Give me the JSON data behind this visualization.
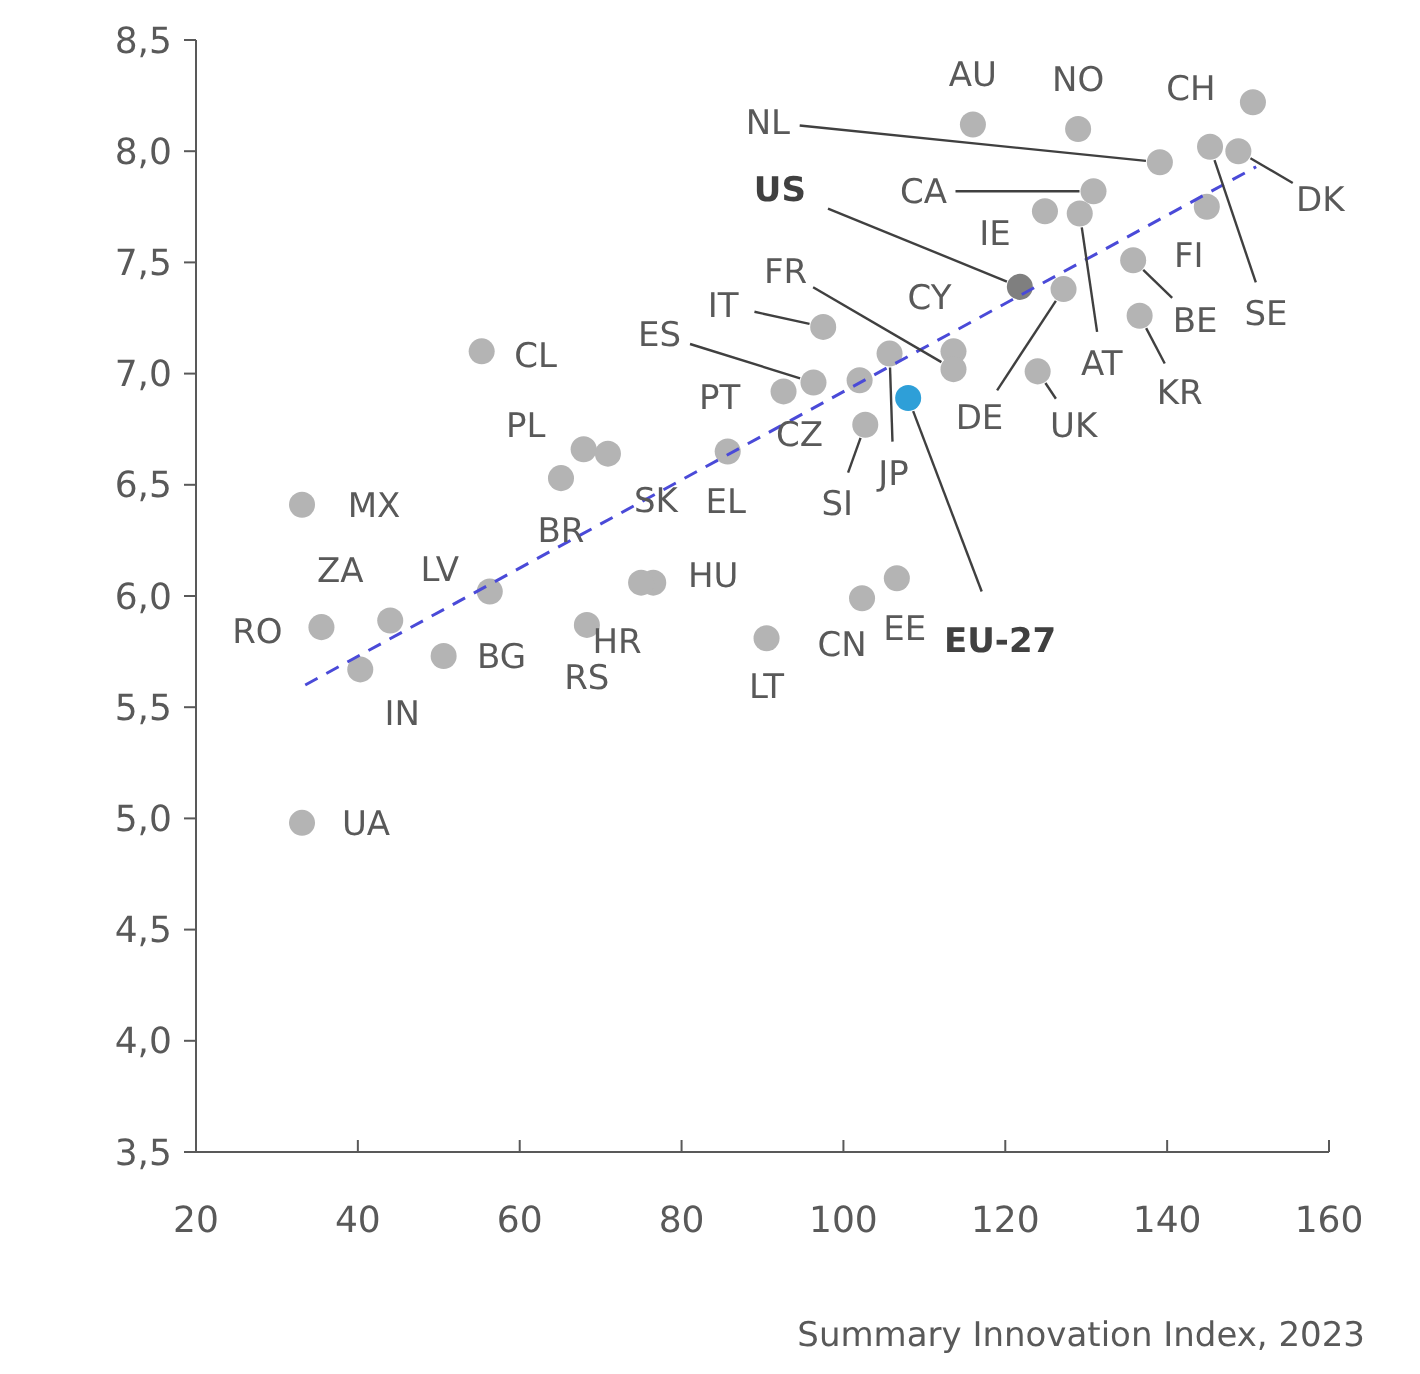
{
  "chart_data": {
    "type": "scatter",
    "xlabel": "Summary Innovation Index, 2023",
    "xlim": [
      20,
      160
    ],
    "xticks": [
      20,
      40,
      60,
      80,
      100,
      120,
      140,
      160
    ],
    "ylim": [
      3.5,
      8.5
    ],
    "yticks": [
      {
        "value": 3.5,
        "label": "3,5"
      },
      {
        "value": 4,
        "label": "4,0"
      },
      {
        "value": 4.5,
        "label": "4,5"
      },
      {
        "value": 5,
        "label": "5,0"
      },
      {
        "value": 5.5,
        "label": "5,5"
      },
      {
        "value": 6,
        "label": "6,0"
      },
      {
        "value": 6.5,
        "label": "6,5"
      },
      {
        "value": 7,
        "label": "7,0"
      },
      {
        "value": 7.5,
        "label": "7,5"
      },
      {
        "value": 8,
        "label": "8,0"
      },
      {
        "value": 8.5,
        "label": "8,5"
      }
    ],
    "grid": false,
    "series": [
      {
        "marker": "circle",
        "x": [
          116,
          129,
          150.6,
          139.1,
          145.3,
          148.8,
          144.9,
          135.8,
          136.6,
          130.9,
          129.2,
          124.9,
          121.8,
          127.2,
          124,
          113.6,
          113.6,
          97.5,
          105.7,
          108,
          102,
          96.3,
          92.6,
          102.7,
          85.7,
          67.9,
          70.9,
          65.1,
          76.5,
          75,
          68.3,
          90.5,
          102.3,
          106.6,
          55.3,
          33.1,
          44,
          35.5,
          40.3,
          56.3,
          50.6,
          33.1
        ],
        "values": [
          8.12,
          8.1,
          8.22,
          7.95,
          8.02,
          8,
          7.75,
          7.51,
          7.26,
          7.82,
          7.72,
          7.73,
          7.39,
          7.38,
          7.01,
          7.1,
          7.02,
          7.21,
          7.09,
          6.89,
          6.97,
          6.96,
          6.92,
          6.77,
          6.65,
          6.66,
          6.64,
          6.53,
          6.06,
          6.06,
          5.87,
          5.81,
          5.99,
          6.08,
          7.1,
          6.41,
          5.89,
          5.86,
          5.67,
          6.02,
          5.73,
          4.98
        ],
        "colors": [
          "#b4b4b4",
          "#b4b4b4",
          "#b4b4b4",
          "#b4b4b4",
          "#b4b4b4",
          "#b4b4b4",
          "#b4b4b4",
          "#b4b4b4",
          "#b4b4b4",
          "#b4b4b4",
          "#b4b4b4",
          "#b4b4b4",
          "#7f7f7f",
          "#b4b4b4",
          "#b4b4b4",
          "#b4b4b4",
          "#b4b4b4",
          "#b4b4b4",
          "#b4b4b4",
          "#2e9fd8",
          "#b4b4b4",
          "#b4b4b4",
          "#b4b4b4",
          "#b4b4b4",
          "#b4b4b4",
          "#b4b4b4",
          "#b4b4b4",
          "#b4b4b4",
          "#b4b4b4",
          "#b4b4b4",
          "#b4b4b4",
          "#b4b4b4",
          "#b4b4b4",
          "#b4b4b4",
          "#b4b4b4",
          "#b4b4b4",
          "#b4b4b4",
          "#b4b4b4",
          "#b4b4b4",
          "#b4b4b4",
          "#b4b4b4",
          "#b4b4b4"
        ]
      },
      {
        "type": "line",
        "color": "#4a4ad8",
        "line_style": "dashed",
        "x": [
          33.5,
          151
        ],
        "values": [
          5.6,
          7.93
        ]
      }
    ],
    "annotations": [
      {
        "text": "AU",
        "x": 116,
        "y": 8.12
      },
      {
        "text": "NO",
        "x": 129,
        "y": 8.1
      },
      {
        "text": "CH",
        "x": 150.6,
        "y": 8.22
      },
      {
        "text": "NL",
        "x": 139.1,
        "y": 7.95
      },
      {
        "text": "SE",
        "x": 145.3,
        "y": 8.02
      },
      {
        "text": "DK",
        "x": 148.8,
        "y": 8
      },
      {
        "text": "FI",
        "x": 144.9,
        "y": 7.75
      },
      {
        "text": "BE",
        "x": 135.8,
        "y": 7.51
      },
      {
        "text": "KR",
        "x": 136.6,
        "y": 7.26
      },
      {
        "text": "CA",
        "x": 130.9,
        "y": 7.82
      },
      {
        "text": "AT",
        "x": 129.2,
        "y": 7.72
      },
      {
        "text": "IE",
        "x": 124.9,
        "y": 7.73
      },
      {
        "text": "US",
        "x": 121.8,
        "y": 7.39
      },
      {
        "text": "DE",
        "x": 127.2,
        "y": 7.38
      },
      {
        "text": "UK",
        "x": 124,
        "y": 7.01
      },
      {
        "text": "CY",
        "x": 113.6,
        "y": 7.1
      },
      {
        "text": "FR",
        "x": 113.6,
        "y": 7.02
      },
      {
        "text": "IT",
        "x": 97.5,
        "y": 7.21
      },
      {
        "text": "JP",
        "x": 105.7,
        "y": 7.09
      },
      {
        "text": "EU-27",
        "x": 108,
        "y": 6.89
      },
      {
        "text": "CZ",
        "x": 102,
        "y": 6.97
      },
      {
        "text": "ES",
        "x": 96.3,
        "y": 6.96
      },
      {
        "text": "PT",
        "x": 92.6,
        "y": 6.92
      },
      {
        "text": "SI",
        "x": 102.7,
        "y": 6.77
      },
      {
        "text": "EL",
        "x": 85.7,
        "y": 6.65
      },
      {
        "text": "PL",
        "x": 67.9,
        "y": 6.66
      },
      {
        "text": "SK",
        "x": 70.9,
        "y": 6.64
      },
      {
        "text": "BR",
        "x": 65.1,
        "y": 6.53
      },
      {
        "text": "HU",
        "x": 76.5,
        "y": 6.06
      },
      {
        "text": "HR",
        "x": 75,
        "y": 6.06
      },
      {
        "text": "RS",
        "x": 68.3,
        "y": 5.87
      },
      {
        "text": "LT",
        "x": 90.5,
        "y": 5.81
      },
      {
        "text": "CN",
        "x": 102.3,
        "y": 5.99
      },
      {
        "text": "EE",
        "x": 106.6,
        "y": 6.08
      },
      {
        "text": "CL",
        "x": 55.3,
        "y": 7.1
      },
      {
        "text": "MX",
        "x": 33.1,
        "y": 6.41
      },
      {
        "text": "ZA",
        "x": 44,
        "y": 5.89
      },
      {
        "text": "RO",
        "x": 35.5,
        "y": 5.86
      },
      {
        "text": "IN",
        "x": 40.3,
        "y": 5.67
      },
      {
        "text": "LV",
        "x": 56.3,
        "y": 6.02
      },
      {
        "text": "BG",
        "x": 50.6,
        "y": 5.73
      },
      {
        "text": "UA",
        "x": 33.1,
        "y": 4.98
      }
    ]
  }
}
